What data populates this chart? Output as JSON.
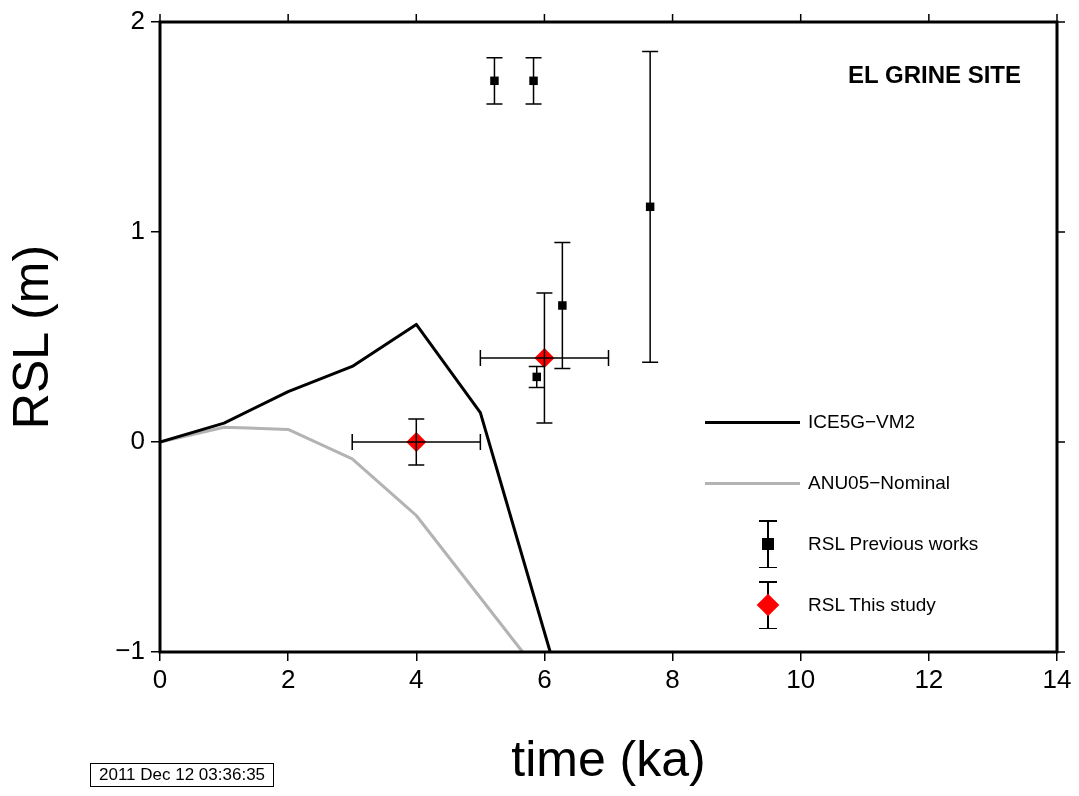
{
  "chart_data": {
    "type": "scatter",
    "title": "EL GRINE SITE",
    "xlabel": "time (ka)",
    "ylabel": "RSL (m)",
    "xlim": [
      0,
      14
    ],
    "xticks": [
      0,
      2,
      4,
      6,
      8,
      10,
      12,
      14
    ],
    "ylim": [
      -1,
      2
    ],
    "yticks": [
      -1,
      0,
      1,
      2
    ],
    "grid": false,
    "legend": "bottom right",
    "series": [
      {
        "name": "ICE5G−VM2",
        "type": "line",
        "color": "#000000",
        "marker": "none",
        "x": [
          0,
          1,
          2,
          3,
          4,
          5,
          6.09
        ],
        "values": [
          0,
          0.09,
          0.24,
          0.36,
          0.56,
          0.14,
          -1
        ]
      },
      {
        "name": "ANU05−Nominal",
        "type": "line",
        "color": "#b3b3b3",
        "marker": "none",
        "x": [
          0,
          1,
          2,
          3,
          4,
          5.66
        ],
        "values": [
          0,
          0.07,
          0.06,
          -0.08,
          -0.35,
          -1
        ]
      },
      {
        "name": "RSL Previous works",
        "type": "scatter",
        "color": "#000000",
        "marker": "square",
        "x": [
          5.22,
          5.83,
          7.65,
          6.28,
          5.88
        ],
        "values": [
          1.72,
          1.72,
          1.12,
          0.65,
          0.31
        ],
        "errors": [
          0.11,
          0.11,
          0.74,
          0.3,
          0.05
        ]
      },
      {
        "name": "RSL This study",
        "type": "scatter",
        "color": "#ff0000",
        "marker": "diamond",
        "x": [
          4,
          6
        ],
        "values": [
          0,
          0.4
        ],
        "errors": [
          0.11,
          0.31
        ],
        "xerrors": [
          1,
          1
        ]
      }
    ],
    "annotations": [
      "2011 Dec 12 03:36:35"
    ]
  }
}
